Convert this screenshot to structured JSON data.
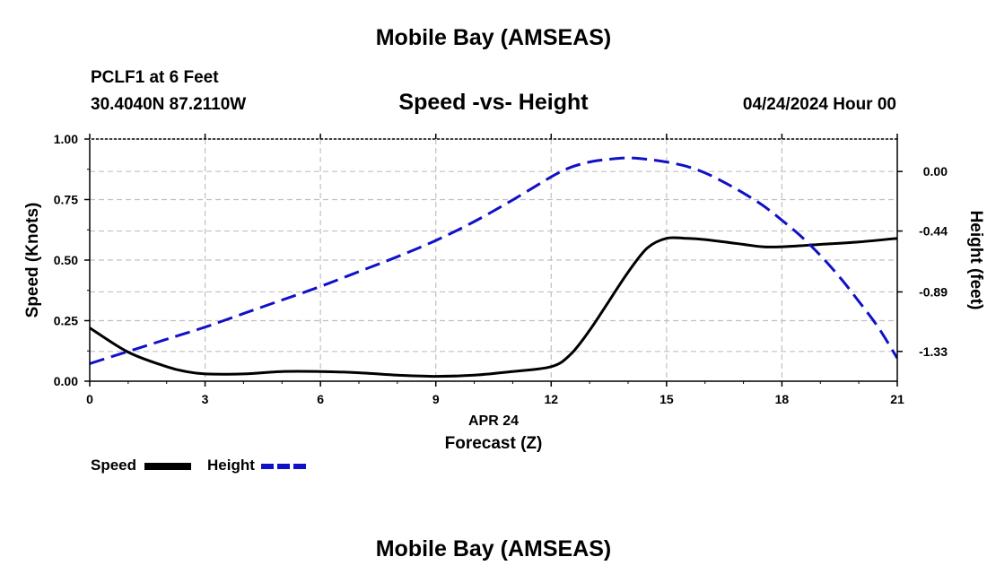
{
  "header": {
    "title": "Mobile Bay (AMSEAS)",
    "station": "PCLF1 at 6 Feet",
    "coords": "30.4040N  87.2110W",
    "chart_title": "Speed -vs- Height",
    "date": "04/24/2024 Hour 00"
  },
  "footer": {
    "title": "Mobile Bay (AMSEAS)"
  },
  "legend": {
    "speed_label": "Speed",
    "height_label": "Height"
  },
  "colors": {
    "speed": "#000000",
    "height": "#1010c8",
    "grid": "#c0c0c0"
  },
  "chart_data": {
    "type": "line",
    "xlabel": "Forecast (Z)",
    "xsublabel": "APR 24",
    "ylabel": "Speed (Knots)",
    "y2label": "Height (feet)",
    "xlim": [
      0,
      21
    ],
    "ylim": [
      0,
      1
    ],
    "y2lim": [
      -1.55,
      0.24
    ],
    "grid": true,
    "legend_position": "bottom-left",
    "x_ticks": [
      0,
      3,
      6,
      9,
      12,
      15,
      18,
      21
    ],
    "x_tick_labels": [
      "0",
      "3",
      "6",
      "9",
      "12",
      "15",
      "18",
      "21"
    ],
    "y_ticks": [
      0,
      0.25,
      0.5,
      0.75,
      1.0
    ],
    "y_tick_labels": [
      "0.00",
      "0.25",
      "0.50",
      "0.75",
      "1.00"
    ],
    "y2_ticks": [
      0.0,
      -0.44,
      -0.89,
      -1.33
    ],
    "y2_tick_labels": [
      "0.00",
      "-0.44",
      "-0.89",
      "-1.33"
    ],
    "series": [
      {
        "name": "Speed",
        "axis": "left",
        "x": [
          0,
          1,
          2,
          2.5,
          3,
          4,
          5,
          6,
          7,
          8,
          9,
          10,
          11,
          12,
          12.5,
          13,
          13.5,
          14,
          14.5,
          15,
          15.5,
          16,
          17,
          17.5,
          18,
          19,
          20,
          21
        ],
        "values": [
          0.22,
          0.12,
          0.06,
          0.04,
          0.03,
          0.03,
          0.04,
          0.04,
          0.035,
          0.025,
          0.02,
          0.025,
          0.04,
          0.06,
          0.11,
          0.21,
          0.33,
          0.45,
          0.55,
          0.59,
          0.59,
          0.585,
          0.565,
          0.555,
          0.555,
          0.565,
          0.575,
          0.59
        ]
      },
      {
        "name": "Height",
        "axis": "right",
        "x": [
          0,
          1,
          2,
          3,
          4,
          5,
          6,
          7,
          8,
          9,
          10,
          11,
          12,
          12.5,
          13,
          13.5,
          14,
          14.5,
          15,
          15.5,
          16,
          16.5,
          17,
          17.5,
          18,
          18.5,
          19,
          19.5,
          20,
          20.5,
          21
        ],
        "values": [
          -1.42,
          -1.33,
          -1.24,
          -1.15,
          -1.05,
          -0.95,
          -0.85,
          -0.74,
          -0.63,
          -0.51,
          -0.37,
          -0.21,
          -0.04,
          0.03,
          0.07,
          0.09,
          0.1,
          0.09,
          0.07,
          0.04,
          -0.01,
          -0.08,
          -0.16,
          -0.25,
          -0.36,
          -0.48,
          -0.62,
          -0.78,
          -0.96,
          -1.15,
          -1.38
        ]
      }
    ]
  }
}
